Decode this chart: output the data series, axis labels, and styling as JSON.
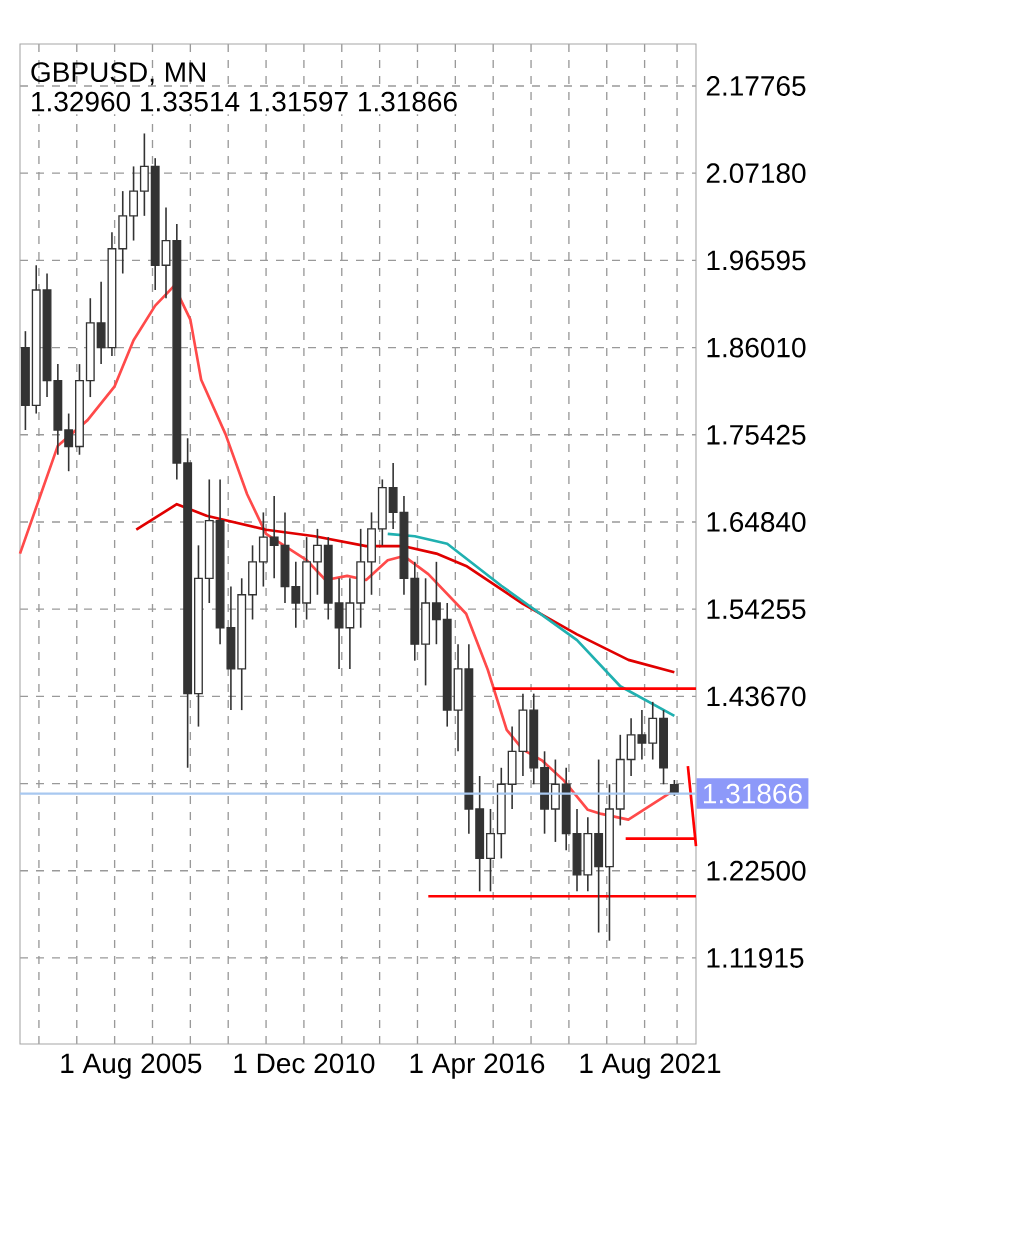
{
  "chart_data": {
    "type": "candlestick",
    "title": "GBPUSD, MN",
    "subtitle": "1.32960 1.33514 1.31597 1.31866",
    "color": "#333333",
    "x": [
      "2002-05",
      "2002-09",
      "2003-01",
      "2003-05",
      "2003-09",
      "2004-01",
      "2004-05",
      "2004-09",
      "2005-01",
      "2005-05",
      "2005-09",
      "2006-01",
      "2006-05",
      "2006-09",
      "2007-01",
      "2007-05",
      "2007-09",
      "2008-01",
      "2008-05",
      "2008-09",
      "2009-01",
      "2009-05",
      "2009-09",
      "2010-01",
      "2010-05",
      "2010-09",
      "2011-01",
      "2011-05",
      "2011-09",
      "2012-01",
      "2012-05",
      "2012-09",
      "2013-01",
      "2013-05",
      "2013-09",
      "2014-01",
      "2014-05",
      "2014-09",
      "2015-01",
      "2015-05",
      "2015-09",
      "2016-01",
      "2016-05",
      "2016-09",
      "2017-01",
      "2017-05",
      "2017-09",
      "2018-01",
      "2018-05",
      "2018-09",
      "2019-01",
      "2019-05",
      "2019-09",
      "2020-01",
      "2020-05",
      "2020-09",
      "2021-01",
      "2021-05",
      "2021-09",
      "2022-01",
      "2022-05"
    ],
    "ohlc": [
      [
        1.86,
        1.88,
        1.76,
        1.79
      ],
      [
        1.79,
        1.96,
        1.78,
        1.93
      ],
      [
        1.93,
        1.95,
        1.8,
        1.82
      ],
      [
        1.82,
        1.84,
        1.73,
        1.76
      ],
      [
        1.76,
        1.78,
        1.71,
        1.74
      ],
      [
        1.74,
        1.84,
        1.73,
        1.82
      ],
      [
        1.82,
        1.92,
        1.8,
        1.89
      ],
      [
        1.89,
        1.94,
        1.84,
        1.86
      ],
      [
        1.86,
        2.0,
        1.85,
        1.98
      ],
      [
        1.98,
        2.05,
        1.95,
        2.02
      ],
      [
        2.02,
        2.08,
        1.99,
        2.05
      ],
      [
        2.05,
        2.12,
        2.02,
        2.08
      ],
      [
        2.08,
        2.09,
        1.93,
        1.96
      ],
      [
        1.96,
        2.03,
        1.92,
        1.99
      ],
      [
        1.99,
        2.01,
        1.7,
        1.72
      ],
      [
        1.72,
        1.75,
        1.35,
        1.44
      ],
      [
        1.44,
        1.62,
        1.4,
        1.58
      ],
      [
        1.58,
        1.7,
        1.55,
        1.65
      ],
      [
        1.65,
        1.7,
        1.5,
        1.52
      ],
      [
        1.52,
        1.57,
        1.42,
        1.47
      ],
      [
        1.47,
        1.58,
        1.42,
        1.56
      ],
      [
        1.56,
        1.62,
        1.53,
        1.6
      ],
      [
        1.6,
        1.66,
        1.57,
        1.63
      ],
      [
        1.63,
        1.68,
        1.58,
        1.62
      ],
      [
        1.62,
        1.66,
        1.55,
        1.57
      ],
      [
        1.57,
        1.6,
        1.52,
        1.55
      ],
      [
        1.55,
        1.63,
        1.53,
        1.6
      ],
      [
        1.6,
        1.64,
        1.56,
        1.62
      ],
      [
        1.62,
        1.63,
        1.53,
        1.55
      ],
      [
        1.55,
        1.58,
        1.47,
        1.52
      ],
      [
        1.52,
        1.58,
        1.47,
        1.55
      ],
      [
        1.55,
        1.64,
        1.52,
        1.6
      ],
      [
        1.6,
        1.66,
        1.56,
        1.64
      ],
      [
        1.64,
        1.7,
        1.62,
        1.69
      ],
      [
        1.69,
        1.72,
        1.64,
        1.66
      ],
      [
        1.66,
        1.68,
        1.56,
        1.58
      ],
      [
        1.58,
        1.6,
        1.48,
        1.5
      ],
      [
        1.5,
        1.58,
        1.45,
        1.55
      ],
      [
        1.55,
        1.6,
        1.5,
        1.53
      ],
      [
        1.53,
        1.55,
        1.4,
        1.42
      ],
      [
        1.42,
        1.5,
        1.37,
        1.47
      ],
      [
        1.47,
        1.5,
        1.27,
        1.3
      ],
      [
        1.3,
        1.34,
        1.2,
        1.24
      ],
      [
        1.24,
        1.3,
        1.2,
        1.27
      ],
      [
        1.27,
        1.35,
        1.24,
        1.33
      ],
      [
        1.33,
        1.4,
        1.3,
        1.37
      ],
      [
        1.37,
        1.44,
        1.34,
        1.42
      ],
      [
        1.42,
        1.44,
        1.33,
        1.35
      ],
      [
        1.35,
        1.37,
        1.27,
        1.3
      ],
      [
        1.3,
        1.36,
        1.26,
        1.33
      ],
      [
        1.33,
        1.35,
        1.25,
        1.27
      ],
      [
        1.27,
        1.3,
        1.2,
        1.22
      ],
      [
        1.22,
        1.29,
        1.2,
        1.27
      ],
      [
        1.27,
        1.36,
        1.15,
        1.23
      ],
      [
        1.23,
        1.33,
        1.14,
        1.3
      ],
      [
        1.3,
        1.39,
        1.28,
        1.36
      ],
      [
        1.36,
        1.41,
        1.34,
        1.39
      ],
      [
        1.39,
        1.42,
        1.36,
        1.38
      ],
      [
        1.38,
        1.43,
        1.36,
        1.41
      ],
      [
        1.41,
        1.42,
        1.33,
        1.35
      ],
      [
        1.3296,
        1.33514,
        1.31597,
        1.31866
      ]
    ],
    "series": [
      {
        "type": "line",
        "color": "#ff4a4a",
        "x": [
          "2002-03",
          "2003-05",
          "2004-04",
          "2005-02",
          "2005-09",
          "2006-05",
          "2006-12",
          "2007-06",
          "2007-10",
          "2008-07",
          "2009-03",
          "2009-10",
          "2011-01",
          "2011-08",
          "2012-04",
          "2012-11",
          "2013-07",
          "2014-01",
          "2014-10",
          "2015-12",
          "2016-08",
          "2017-03",
          "2017-09",
          "2018-04",
          "2018-12",
          "2019-09",
          "2020-02",
          "2020-12",
          "2022-05"
        ],
        "values": [
          1.61,
          1.741,
          1.772,
          1.813,
          1.869,
          1.911,
          1.935,
          1.894,
          1.821,
          1.755,
          1.682,
          1.634,
          1.602,
          1.578,
          1.583,
          1.578,
          1.602,
          1.607,
          1.585,
          1.537,
          1.469,
          1.396,
          1.372,
          1.359,
          1.335,
          1.299,
          1.294,
          1.287,
          1.323
        ]
      },
      {
        "type": "line",
        "color": "#e00000",
        "x": [
          "2005-10",
          "2007-01",
          "2007-12",
          "2009-10",
          "2011-04",
          "2012-11",
          "2014-01",
          "2015-01",
          "2015-12",
          "2017-09",
          "2019-05",
          "2020-12",
          "2022-05"
        ],
        "values": [
          1.639,
          1.67,
          1.656,
          1.639,
          1.631,
          1.619,
          1.619,
          1.61,
          1.595,
          1.549,
          1.512,
          1.481,
          1.466
        ]
      },
      {
        "type": "line",
        "color": "#20b0b0",
        "x": [
          "2013-07",
          "2014-05",
          "2015-05",
          "2017-01",
          "2019-05",
          "2020-09",
          "2022-05"
        ],
        "values": [
          1.634,
          1.631,
          1.622,
          1.571,
          1.505,
          1.449,
          1.413
        ]
      },
      {
        "type": "line",
        "color": "#ff0000",
        "x": [
          "2016-10",
          "2023-01"
        ],
        "values": [
          1.446,
          1.446
        ]
      },
      {
        "type": "line",
        "color": "#ff0000",
        "x": [
          "2020-11",
          "2023-01"
        ],
        "values": [
          1.264,
          1.264
        ]
      },
      {
        "type": "line",
        "color": "#ff0000",
        "x": [
          "2014-10",
          "2023-01"
        ],
        "values": [
          1.194,
          1.194
        ]
      },
      {
        "type": "line",
        "color": "#ff0000",
        "x": [
          "2022-10",
          "2023-01"
        ],
        "values": [
          1.352,
          1.255
        ]
      }
    ],
    "xlim": [
      "2002-03",
      "2023-01"
    ],
    "xticks": [
      {
        "value": "2002-10",
        "label": null
      },
      {
        "value": "2003-12",
        "label": null
      },
      {
        "value": "2005-02",
        "label": null
      },
      {
        "value": "2006-04",
        "label": null
      },
      {
        "value": "2007-06",
        "label": null
      },
      {
        "value": "2008-08",
        "label": null
      },
      {
        "value": "2009-10",
        "label": null
      },
      {
        "value": "2010-12",
        "label": null
      },
      {
        "value": "2012-02",
        "label": null
      },
      {
        "value": "2013-04",
        "label": null
      },
      {
        "value": "2014-06",
        "label": null
      },
      {
        "value": "2015-08",
        "label": null
      },
      {
        "value": "2016-10",
        "label": null
      },
      {
        "value": "2017-12",
        "label": null
      },
      {
        "value": "2019-02",
        "label": null
      },
      {
        "value": "2020-04",
        "label": null
      },
      {
        "value": "2021-06",
        "label": null
      },
      {
        "value": "2022-06",
        "label": null
      },
      {
        "value": "2005-08",
        "label": "1 Aug 2005"
      },
      {
        "value": "2010-12",
        "label": "1 Dec 2010"
      },
      {
        "value": "2016-04",
        "label": "1 Apr 2016"
      },
      {
        "value": "2021-08",
        "label": "1 Aug 2021"
      }
    ],
    "ylim": [
      1.0147,
      2.2286
    ],
    "yticks": [
      2.17765,
      {
        "value": 2.0718,
        "label": "2.07180"
      },
      1.96595,
      {
        "value": 1.8601,
        "label": "1.86010"
      },
      1.75425,
      {
        "value": 1.6484,
        "label": "1.64840"
      },
      1.54255,
      {
        "value": 1.4367,
        "label": "1.43670"
      },
      {
        "value": 1.33085,
        "label": null
      },
      {
        "value": 1.225,
        "label": "1.22500"
      },
      1.11915
    ],
    "ref_lines": [
      {
        "axis": "y",
        "value": 1.31866,
        "label": "1.31866",
        "color": "#a8c8f0"
      }
    ],
    "grid": true
  }
}
